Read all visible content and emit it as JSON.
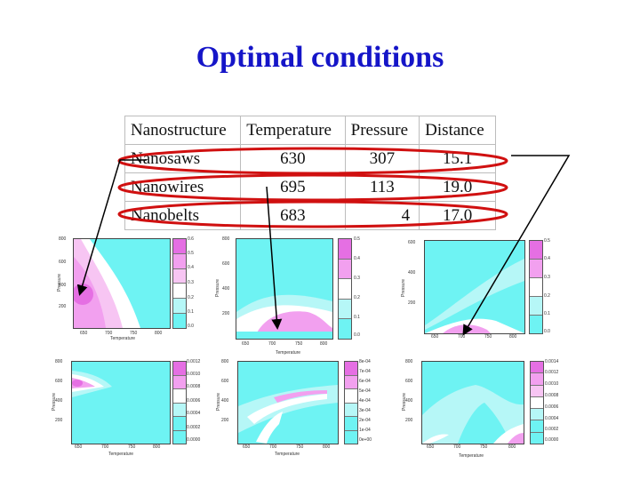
{
  "slide": {
    "title": "Optimal conditions"
  },
  "table": {
    "headers": [
      "Nanostructure",
      "Temperature",
      "Pressure",
      "Distance"
    ],
    "rows": [
      {
        "name": "Nanosaws",
        "temperature": "630",
        "pressure": "307",
        "distance": "15.1"
      },
      {
        "name": "Nanowires",
        "temperature": "695",
        "pressure": "113",
        "distance": "19.0"
      },
      {
        "name": "Nanobelts",
        "temperature": "683",
        "pressure": "4",
        "distance": "17.0"
      }
    ]
  },
  "colors": {
    "title": "#1515c8",
    "highlight": "#d01010",
    "cyan": "#6ef3f3",
    "pink": "#f2a0ef",
    "magenta": "#e040e0",
    "white": "#ffffff"
  },
  "plots": [
    {
      "xlabel": "Temperature",
      "ylabel": "Pressure",
      "xticks": [
        "650",
        "700",
        "750",
        "800"
      ],
      "yticks": [
        "800",
        "600",
        "400",
        "200"
      ],
      "legend": [
        "0.6",
        "0.5",
        "0.4",
        "0.3",
        "0.2",
        "0.1",
        "0.0"
      ]
    },
    {
      "xlabel": "Temperature",
      "ylabel": "Pressure",
      "xticks": [
        "650",
        "700",
        "750",
        "800"
      ],
      "yticks": [
        "800",
        "600",
        "400",
        "200"
      ],
      "legend": [
        "0.5",
        "0.4",
        "0.3",
        "0.2",
        "0.1",
        "0.0"
      ]
    },
    {
      "xlabel": "",
      "ylabel": "Pressure",
      "xticks": [
        "650",
        "700",
        "750",
        "800"
      ],
      "yticks": [
        "600",
        "400",
        "200"
      ],
      "legend": [
        "0.5",
        "0.4",
        "0.3",
        "0.2",
        "0.1",
        "0.0"
      ]
    },
    {
      "xlabel": "Temperature",
      "ylabel": "Pressure",
      "xticks": [
        "650",
        "700",
        "750",
        "800"
      ],
      "yticks": [
        "800",
        "600",
        "400",
        "200"
      ],
      "legend": [
        "0.0012",
        "0.0010",
        "0.0008",
        "0.0006",
        "0.0004",
        "0.0002",
        "0.0000"
      ]
    },
    {
      "xlabel": "Temperature",
      "ylabel": "Pressure",
      "xticks": [
        "650",
        "700",
        "750",
        "800"
      ],
      "yticks": [
        "800",
        "600",
        "400",
        "200"
      ],
      "legend": [
        "8e-04",
        "7e-04",
        "6e-04",
        "5e-04",
        "4e-04",
        "3e-04",
        "2e-04",
        "1e-04",
        "0e+00"
      ]
    },
    {
      "xlabel": "Temperature",
      "ylabel": "Pressure",
      "xticks": [
        "650",
        "700",
        "750",
        "800"
      ],
      "yticks": [
        "800",
        "600",
        "400",
        "200"
      ],
      "legend": [
        "0.0014",
        "0.0012",
        "0.0010",
        "0.0008",
        "0.0006",
        "0.0004",
        "0.0002",
        "0.0000"
      ]
    }
  ]
}
